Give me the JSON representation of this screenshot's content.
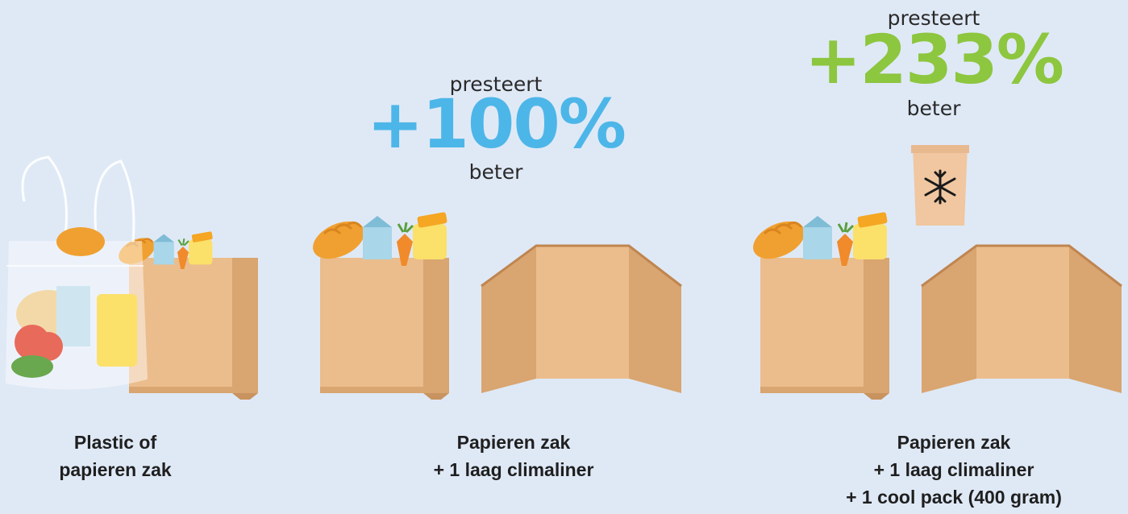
{
  "columns": [
    {
      "caption": [
        "Plastic of",
        "papieren zak"
      ]
    },
    {
      "performance": {
        "prefix": "presteert",
        "value": "+100%",
        "suffix": "beter"
      },
      "caption": [
        "Papieren zak",
        "+ 1 laag climaliner"
      ]
    },
    {
      "performance": {
        "prefix": "presteert",
        "value": "+233%",
        "suffix": "beter"
      },
      "caption": [
        "Papieren zak",
        "+ 1 laag climaliner",
        "+ 1 cool pack (400 gram)"
      ]
    }
  ]
}
